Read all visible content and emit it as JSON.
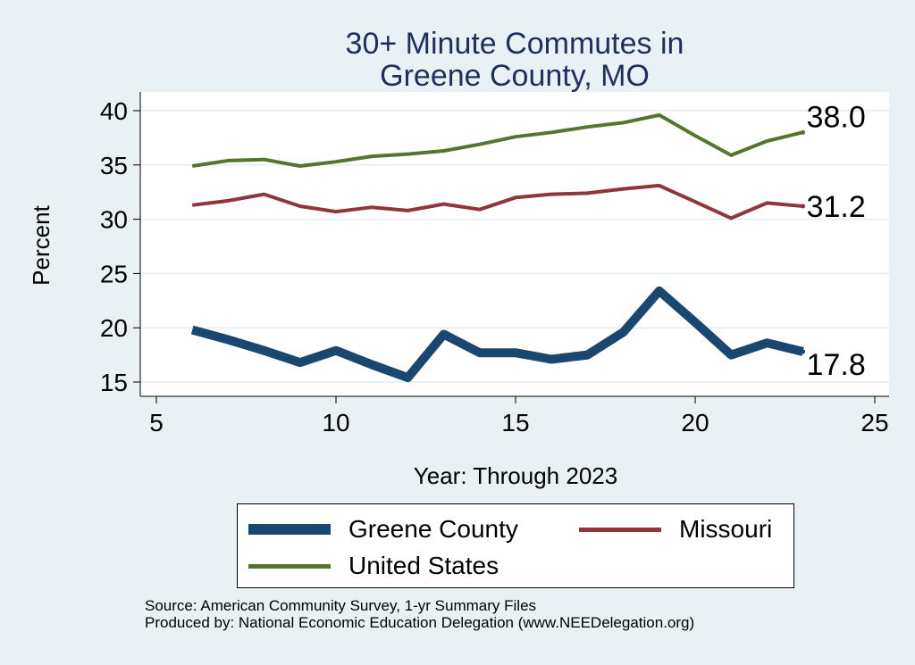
{
  "chart_data": {
    "type": "line",
    "title": [
      "30+ Minute Commutes in",
      "Greene County, MO"
    ],
    "xlabel": "Year: Through 2023",
    "ylabel": "Percent",
    "xlim": [
      5,
      25
    ],
    "ylim": [
      14,
      41
    ],
    "xticks": [
      5,
      10,
      15,
      20,
      25
    ],
    "yticks": [
      15,
      20,
      25,
      30,
      35,
      40
    ],
    "grid": true,
    "legend_position": "bottom",
    "series": [
      {
        "name": "Greene County",
        "color": "#1a476f",
        "x": [
          6,
          7,
          8,
          9,
          10,
          11,
          12,
          13,
          14,
          15,
          16,
          17,
          18,
          19,
          20,
          21,
          22,
          23
        ],
        "values": [
          19.8,
          18.9,
          17.9,
          16.8,
          17.9,
          16.6,
          15.4,
          19.4,
          17.7,
          17.7,
          17.1,
          17.5,
          19.6,
          23.4,
          20.5,
          17.5,
          18.6,
          17.8
        ],
        "end_label": "17.8"
      },
      {
        "name": "Missouri",
        "color": "#90353b",
        "x": [
          6,
          7,
          8,
          9,
          10,
          11,
          12,
          13,
          14,
          15,
          16,
          17,
          18,
          19,
          20,
          21,
          22,
          23
        ],
        "values": [
          31.3,
          31.7,
          32.3,
          31.2,
          30.7,
          31.1,
          30.8,
          31.4,
          30.9,
          32.0,
          32.3,
          32.4,
          32.8,
          33.1,
          31.6,
          30.1,
          31.5,
          31.2
        ],
        "end_label": "31.2"
      },
      {
        "name": "United States",
        "color": "#55752f",
        "x": [
          6,
          7,
          8,
          9,
          10,
          11,
          12,
          13,
          14,
          15,
          16,
          17,
          18,
          19,
          20,
          21,
          22,
          23
        ],
        "values": [
          34.9,
          35.4,
          35.5,
          34.9,
          35.3,
          35.8,
          36.0,
          36.3,
          36.9,
          37.6,
          38.0,
          38.5,
          38.9,
          39.6,
          37.7,
          35.9,
          37.2,
          38.0
        ],
        "end_label": "38.0"
      }
    ]
  },
  "legend": [
    {
      "name": "Greene County",
      "color": "#1a476f"
    },
    {
      "name": "Missouri",
      "color": "#90353b"
    },
    {
      "name": "United States",
      "color": "#55752f"
    }
  ],
  "footer": {
    "source": "Source: American Community Survey, 1-yr Summary Files",
    "producer": "Produced by: National Economic Education Delegation (www.NEEDelegation.org)"
  }
}
